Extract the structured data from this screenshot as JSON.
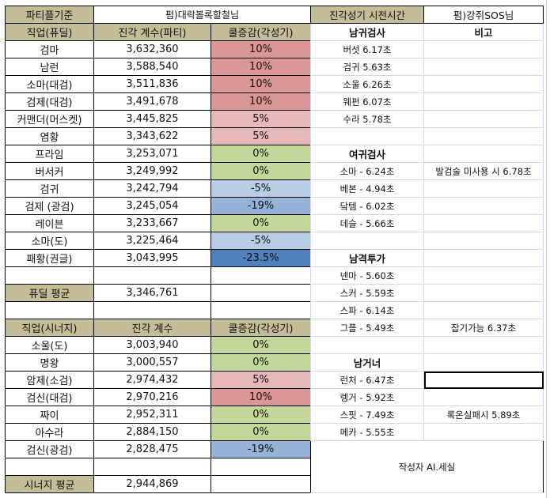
{
  "left": {
    "title": "파티플기준",
    "partner": "펌)대락볼록할철님",
    "dealer_headers": [
      "직업(퓨딜)",
      "진각 계수(파티)",
      "쿨증감(각성기)"
    ],
    "dealers": [
      {
        "job": "검마",
        "value": "3,632,360",
        "cool": "10%",
        "color": "#da9694"
      },
      {
        "job": "남런",
        "value": "3,588,540",
        "cool": "10%",
        "color": "#da9694"
      },
      {
        "job": "소마(대검)",
        "value": "3,511,836",
        "cool": "10%",
        "color": "#da9694"
      },
      {
        "job": "검제(대검)",
        "value": "3,491,678",
        "cool": "10%",
        "color": "#da9694"
      },
      {
        "job": "커맨더(머스켓)",
        "value": "3,445,825",
        "cool": "5%",
        "color": "#e6b8b7"
      },
      {
        "job": "염황",
        "value": "3,343,622",
        "cool": "5%",
        "color": "#e6b8b7"
      },
      {
        "job": "프라임",
        "value": "3,253,071",
        "cool": "0%",
        "color": "#c4d79b"
      },
      {
        "job": "버서커",
        "value": "3,249,992",
        "cool": "0%",
        "color": "#c4d79b"
      },
      {
        "job": "검귀",
        "value": "3,242,794",
        "cool": "-5%",
        "color": "#b8cce4"
      },
      {
        "job": "검제 (광검)",
        "value": "3,245,054",
        "cool": "-19%",
        "color": "#95b3d7"
      },
      {
        "job": "레이븐",
        "value": "3,233,667",
        "cool": "0%",
        "color": "#c4d79b"
      },
      {
        "job": "소마(도)",
        "value": "3,225,464",
        "cool": "-5%",
        "color": "#b8cce4"
      },
      {
        "job": "패황(권글)",
        "value": "3,043,995",
        "cool": "-23.5%",
        "color": "#4f81bd"
      }
    ],
    "dealer_avg_label": "퓨딜 평균",
    "dealer_avg_value": "3,346,761",
    "synergy_headers": [
      "직업(시너지)",
      "진각 계수",
      "쿨증감(각성기)"
    ],
    "synergies": [
      {
        "job": "소울(도)",
        "value": "3,003,940",
        "cool": "0%",
        "color": "#c4d79b"
      },
      {
        "job": "명왕",
        "value": "3,000,557",
        "cool": "0%",
        "color": "#c4d79b"
      },
      {
        "job": "암제(소검)",
        "value": "2,974,432",
        "cool": "5%",
        "color": "#e6b8b7"
      },
      {
        "job": "검신(대검)",
        "value": "2,970,216",
        "cool": "10%",
        "color": "#da9694"
      },
      {
        "job": "짜이",
        "value": "2,952,311",
        "cool": "0%",
        "color": "#c4d79b"
      },
      {
        "job": "아수라",
        "value": "2,884,150",
        "cool": "0%",
        "color": "#c4d79b"
      },
      {
        "job": "검신(광검)",
        "value": "2,828,475",
        "cool": "-19%",
        "color": "#95b3d7"
      }
    ],
    "synergy_avg_label": "시너지 평균",
    "synergy_avg_value": "2,944,869"
  },
  "right": {
    "title": "진각성기 시전시간",
    "partner": "펌)강쥐SOS님",
    "rows": [
      {
        "a": "남귀검사",
        "b": "비고",
        "bold": true
      },
      {
        "a": "버섯 6.17초",
        "b": ""
      },
      {
        "a": "검귀 5.63초",
        "b": ""
      },
      {
        "a": "소울 6.26초",
        "b": ""
      },
      {
        "a": "웨펀 6.07초",
        "b": ""
      },
      {
        "a": "수라 5.78초",
        "b": ""
      },
      {
        "a": "",
        "b": ""
      },
      {
        "a": "여귀검사",
        "b": "",
        "bold": true
      },
      {
        "a": "소마 - 6.24초",
        "b": "발검술 미사용 시 6.78초"
      },
      {
        "a": "베본 - 4.94초",
        "b": ""
      },
      {
        "a": "닼템 - 6.02초",
        "b": ""
      },
      {
        "a": "데슬 - 5.66초",
        "b": ""
      },
      {
        "a": "",
        "b": ""
      },
      {
        "a": "남격투가",
        "b": "",
        "bold": true
      },
      {
        "a": "넨마 - 5.60초",
        "b": ""
      },
      {
        "a": "스커 - 5.59초",
        "b": ""
      },
      {
        "a": "스파 - 6.14초",
        "b": ""
      },
      {
        "a": "그플 - 5.49초",
        "b": "잡기가능 6.37초"
      },
      {
        "a": "",
        "b": ""
      },
      {
        "a": "남거너",
        "b": "",
        "bold": true
      },
      {
        "a": "런처 - 6.47초",
        "b": "",
        "selected": true
      },
      {
        "a": "렝거 - 5.92초",
        "b": ""
      },
      {
        "a": "스핏 - 7.49초",
        "b": "록온실패시 5.89초"
      },
      {
        "a": "메카 - 5.55초",
        "b": ""
      }
    ],
    "author": "작성자 AI.세실"
  }
}
